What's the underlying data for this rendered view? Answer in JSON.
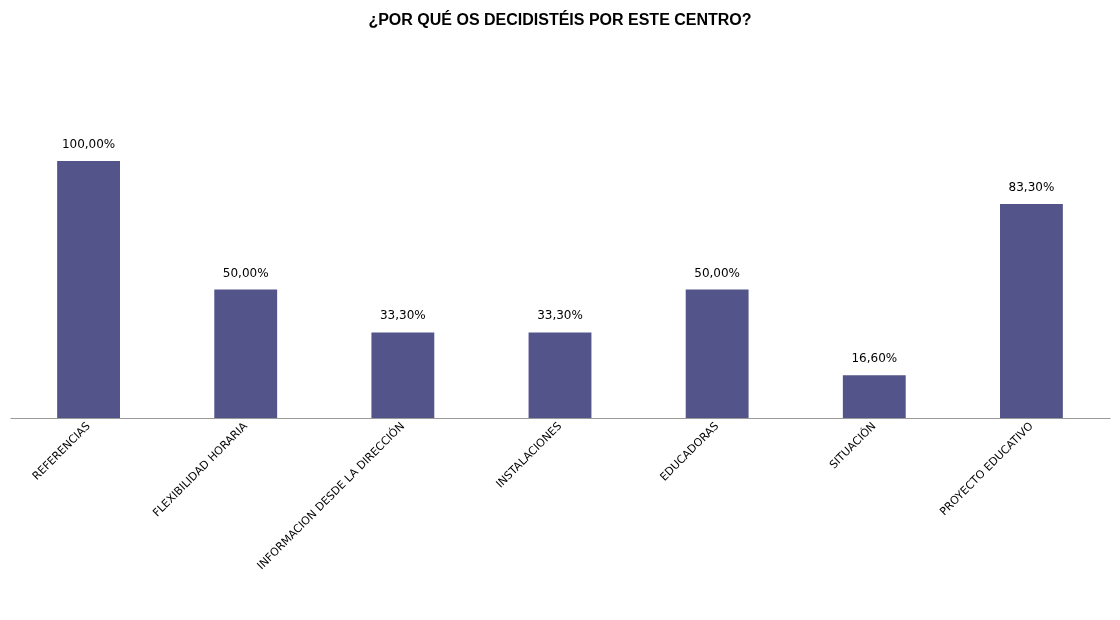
{
  "chart_data": {
    "type": "bar",
    "title": "¿POR QUÉ OS DECIDISTÉIS POR ESTE CENTRO?",
    "categories": [
      "REFERENCIAS",
      "FLEXIBILIDAD HORARIA",
      "INFORMACION DESDE LA DIRECCIÓN",
      "INSTALACIONES",
      "EDUCADORAS",
      "SITUACIÓN",
      "PROYECTO EDUCATIVO"
    ],
    "values": [
      100,
      50,
      33.3,
      33.3,
      50,
      16.6,
      83.3
    ],
    "value_labels": [
      "100,00%",
      "50,00%",
      "33,30%",
      "33,30%",
      "50,00%",
      "16,60%",
      "83,30%"
    ],
    "color": "#53548a"
  }
}
